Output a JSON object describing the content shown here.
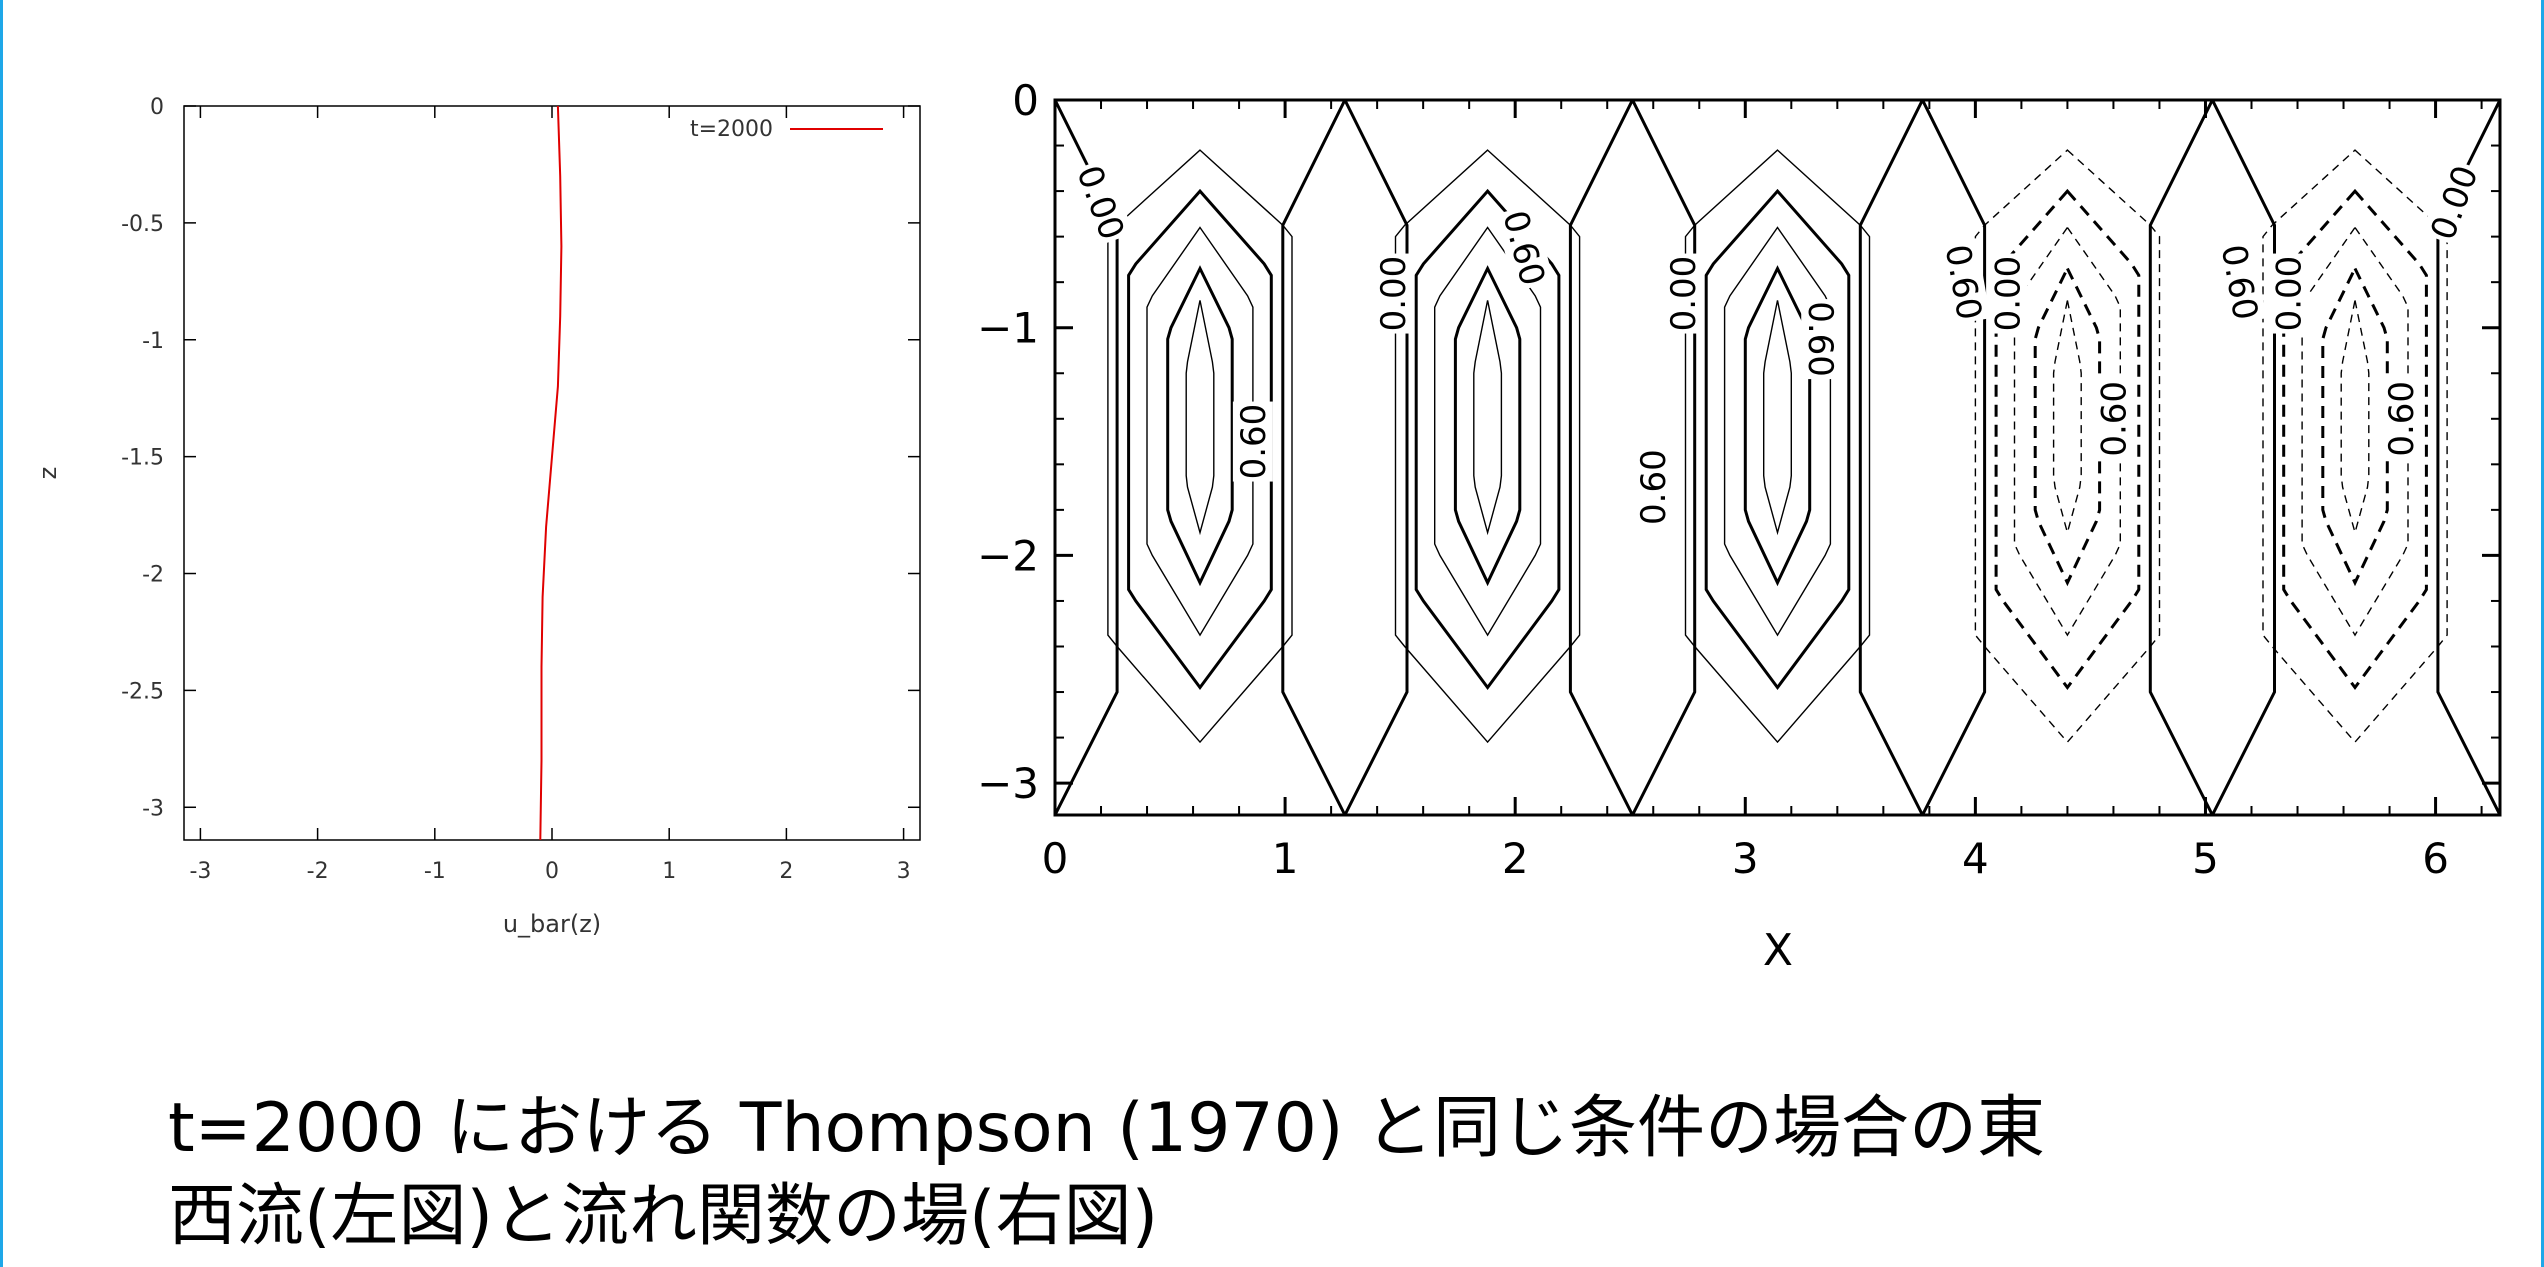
{
  "theme": {
    "accent": "#1ea7e8",
    "profile_line": "#e00000"
  },
  "caption": {
    "line1": "t=2000 における Thompson (1970) と同じ条件の場合の東",
    "line2": "西流(左図)と流れ関数の場(右図)"
  },
  "chart_data": [
    {
      "type": "line",
      "xlabel": "u_bar(z)",
      "ylabel": "z",
      "xlim": [
        -3.14,
        3.14
      ],
      "ylim": [
        -3.14,
        0
      ],
      "xticks": [
        "-3",
        "-2",
        "-1",
        "0",
        "1",
        "2",
        "3"
      ],
      "yticks": [
        "0",
        "-0.5",
        "-1",
        "-1.5",
        "-2",
        "-2.5",
        "-3"
      ],
      "grid": false,
      "legend_position": "top-right",
      "series": [
        {
          "name": "t=2000",
          "color": "#e00000",
          "x": [
            0.05,
            0.07,
            0.08,
            0.07,
            0.05,
            0.0,
            -0.05,
            -0.08,
            -0.09,
            -0.09,
            -0.1
          ],
          "y": [
            0,
            -0.3,
            -0.6,
            -0.9,
            -1.2,
            -1.5,
            -1.8,
            -2.1,
            -2.4,
            -2.8,
            -3.14
          ]
        }
      ]
    },
    {
      "type": "contour",
      "xlabel": "X",
      "ylabel": "",
      "xlim": [
        0,
        6.28
      ],
      "ylim": [
        -3.14,
        0
      ],
      "xticks": [
        "0",
        "1",
        "2",
        "3",
        "4",
        "5",
        "6"
      ],
      "yticks": [
        "0",
        "−1",
        "−2",
        "−3"
      ],
      "cell_centers": [
        0.63,
        1.88,
        3.14,
        4.4,
        5.65
      ],
      "cell_signs": [
        1,
        1,
        1,
        -1,
        -1
      ],
      "zero_line_x": [
        1.26,
        2.51,
        3.77,
        5.03
      ],
      "contour_labels": [
        {
          "text": "0.00",
          "x": 0.2,
          "z": -0.45,
          "angle": 70
        },
        {
          "text": "0.60",
          "x": 0.86,
          "z": -1.5,
          "angle": -90
        },
        {
          "text": "0.00",
          "x": 1.47,
          "z": -0.85,
          "angle": -90
        },
        {
          "text": "0.60",
          "x": 2.04,
          "z": -0.65,
          "angle": 75
        },
        {
          "text": "0.60",
          "x": 2.6,
          "z": -1.7,
          "angle": -90
        },
        {
          "text": "0.00",
          "x": 2.73,
          "z": -0.85,
          "angle": -90
        },
        {
          "text": "0.60",
          "x": 3.33,
          "z": -1.05,
          "angle": 90
        },
        {
          "text": "0.60",
          "x": 3.95,
          "z": -0.8,
          "angle": 80
        },
        {
          "text": "0.00",
          "x": 4.14,
          "z": -0.85,
          "angle": -90
        },
        {
          "text": "0.60",
          "x": 4.6,
          "z": -1.4,
          "angle": -90
        },
        {
          "text": "0.60",
          "x": 5.15,
          "z": -0.8,
          "angle": 80
        },
        {
          "text": "0.00",
          "x": 5.36,
          "z": -0.85,
          "angle": -90
        },
        {
          "text": "0.60",
          "x": 5.85,
          "z": -1.4,
          "angle": -90
        },
        {
          "text": "0.00",
          "x": 6.08,
          "z": -0.45,
          "angle": -70
        }
      ]
    }
  ]
}
